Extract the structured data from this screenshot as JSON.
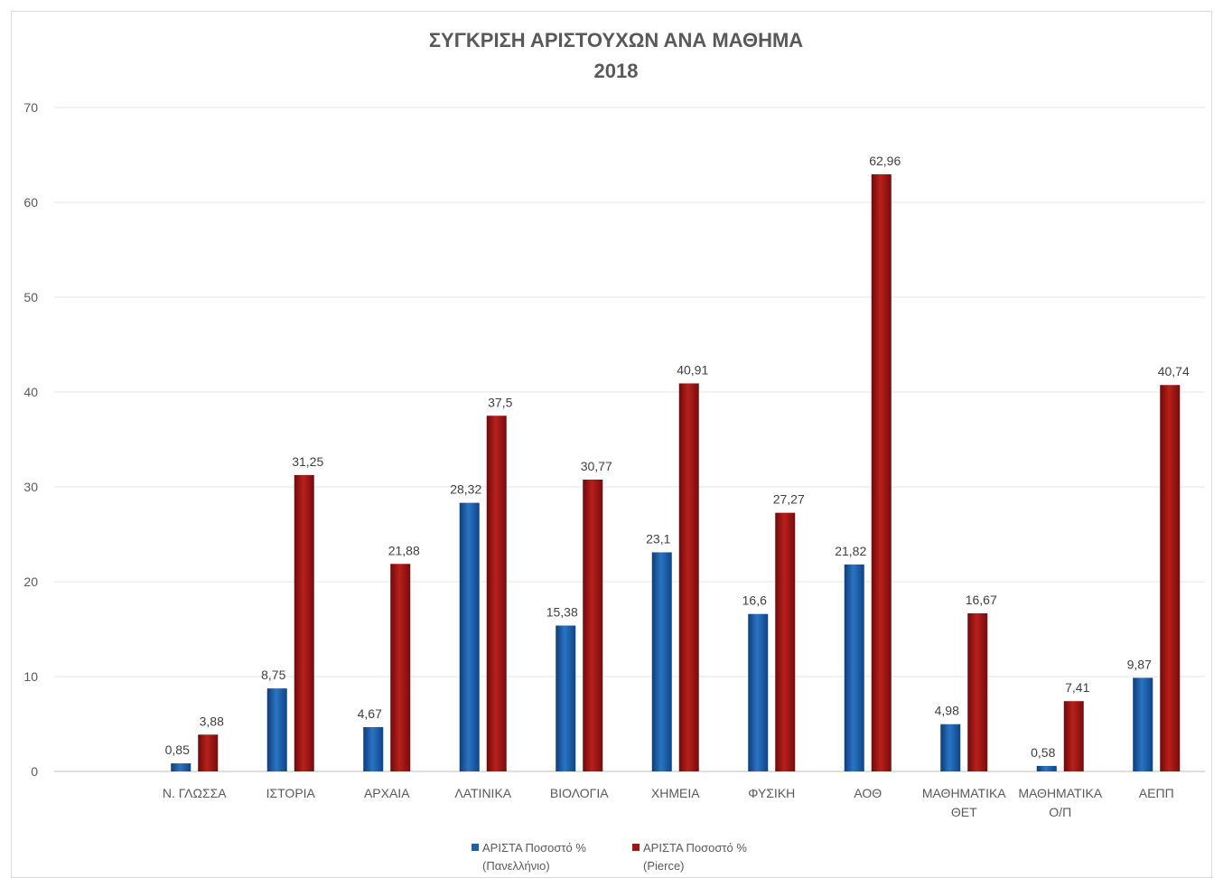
{
  "chart_data": {
    "type": "bar",
    "title": "ΣΥΓΚΡΙΣΗ ΑΡΙΣΤΟΥΧΩΝ ΑΝΑ ΜΑΘΗΜΑ",
    "subtitle": "2018",
    "categories": [
      [
        "Ν. ΓΛΩΣΣΑ"
      ],
      [
        "ΙΣΤΟΡΙΑ"
      ],
      [
        "ΑΡΧΑΙΑ"
      ],
      [
        "ΛΑΤΙΝΙΚΑ"
      ],
      [
        "ΒΙΟΛΟΓΙΑ"
      ],
      [
        "ΧΗΜΕΙΑ"
      ],
      [
        "ΦΥΣΙΚΗ"
      ],
      [
        "ΑΟΘ"
      ],
      [
        "ΜΑΘΗΜΑΤΙΚΑ",
        "ΘΕΤ"
      ],
      [
        "ΜΑΘΗΜΑΤΙΚΑ",
        "Ο/Π"
      ],
      [
        "ΑΕΠΠ"
      ]
    ],
    "series": [
      {
        "name": [
          "ΑΡΙΣΤΑ Ποσοστό %",
          "(Πανελλήνιο)"
        ],
        "color": "#1f5fa8",
        "values": [
          0.85,
          8.75,
          4.67,
          28.32,
          15.38,
          23.1,
          16.6,
          21.82,
          4.98,
          0.58,
          9.87
        ],
        "labels": [
          "0,85",
          "8,75",
          "4,67",
          "28,32",
          "15,38",
          "23,1",
          "16,6",
          "21,82",
          "4,98",
          "0,58",
          "9,87"
        ]
      },
      {
        "name": [
          "ΑΡΙΣΤΑ Ποσοστό %",
          "(Pierce)"
        ],
        "color": "#a01414",
        "values": [
          3.88,
          31.25,
          21.88,
          37.5,
          30.77,
          40.91,
          27.27,
          62.96,
          16.67,
          7.41,
          40.74
        ],
        "labels": [
          "3,88",
          "31,25",
          "21,88",
          "37,5",
          "30,77",
          "40,91",
          "27,27",
          "62,96",
          "16,67",
          "7,41",
          "40,74"
        ]
      }
    ],
    "yticks": [
      "0",
      "10",
      "20",
      "30",
      "40",
      "50",
      "60",
      "70"
    ],
    "ylim": [
      0,
      70
    ],
    "grid": true,
    "legend": "bottom",
    "xlabel": "",
    "ylabel": ""
  }
}
